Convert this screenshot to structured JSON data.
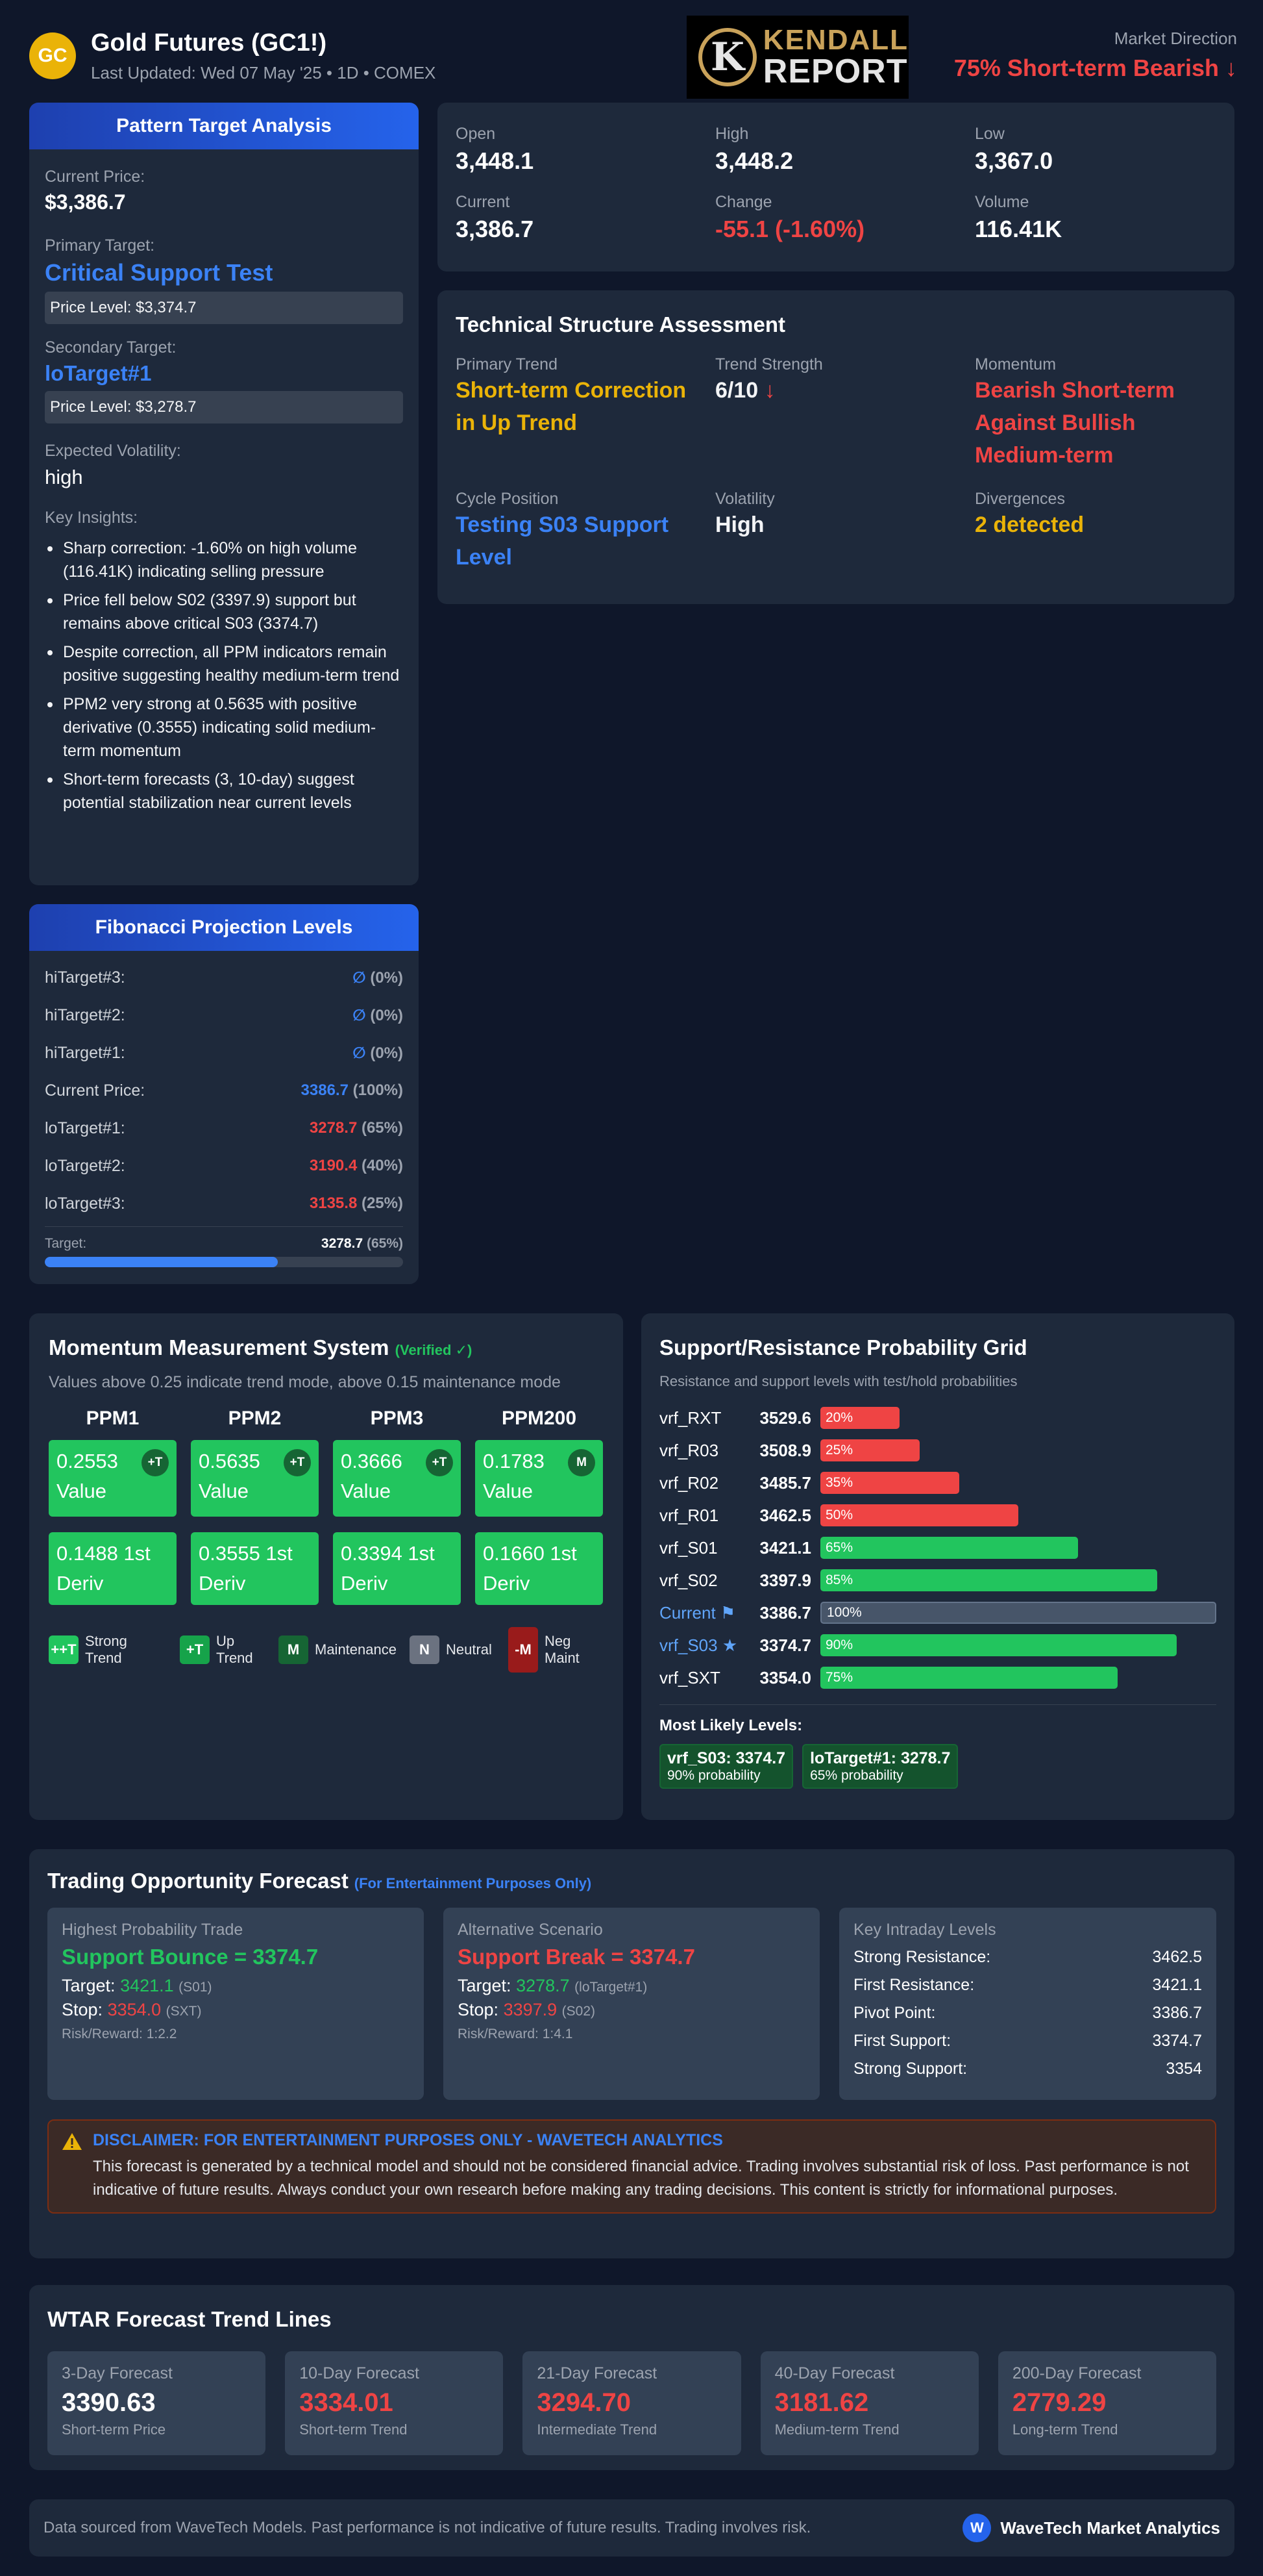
{
  "header": {
    "logo_text": "GC",
    "title": "Gold Futures (GC1!)",
    "subtitle": "Last Updated: Wed 07 May '25 • 1D • COMEX",
    "brand_line1": "KENDALL",
    "brand_line2": "REPORT",
    "market_direction_label": "Market Direction",
    "market_direction_value": "75% Short-term Bearish ↓"
  },
  "pattern": {
    "title": "Pattern Target Analysis",
    "current_price_label": "Current Price:",
    "current_price": "$3,386.7",
    "primary_target_label": "Primary Target:",
    "primary_target": "Critical Support Test",
    "primary_level": "Price Level: $3,374.7",
    "secondary_target_label": "Secondary Target:",
    "secondary_target": "loTarget#1",
    "secondary_level": "Price Level: $3,278.7",
    "volatility_label": "Expected Volatility:",
    "volatility": "high",
    "insights_label": "Key Insights:",
    "insights": [
      "Sharp correction: -1.60% on high volume (116.41K) indicating selling pressure",
      "Price fell below S02 (3397.9) support but remains above critical S03 (3374.7)",
      "Despite correction, all PPM indicators remain positive suggesting healthy medium-term trend",
      "PPM2 very strong at 0.5635 with positive derivative (0.3555) indicating solid medium-term momentum",
      "Short-term forecasts (3, 10-day) suggest potential stabilization near current levels"
    ]
  },
  "fibonacci": {
    "title": "Fibonacci Projection Levels",
    "rows": [
      {
        "label": "hiTarget#3:",
        "value": "∅",
        "pct": "(0%)",
        "color": "#3b82f6"
      },
      {
        "label": "hiTarget#2:",
        "value": "∅",
        "pct": "(0%)",
        "color": "#3b82f6"
      },
      {
        "label": "hiTarget#1:",
        "value": "∅",
        "pct": "(0%)",
        "color": "#3b82f6"
      },
      {
        "label": "Current Price:",
        "value": "3386.7",
        "pct": "(100%)",
        "color": "#3b82f6"
      },
      {
        "label": "loTarget#1:",
        "value": "3278.7",
        "pct": "(65%)",
        "color": "#ef4444"
      },
      {
        "label": "loTarget#2:",
        "value": "3190.4",
        "pct": "(40%)",
        "color": "#ef4444"
      },
      {
        "label": "loTarget#3:",
        "value": "3135.8",
        "pct": "(25%)",
        "color": "#ef4444"
      }
    ],
    "target_label": "Target:",
    "target_value": "3278.7",
    "target_pct": "(65%)",
    "target_progress": 0.65
  },
  "stats": [
    {
      "label": "Open",
      "value": "3,448.1",
      "color": "#ffffff"
    },
    {
      "label": "High",
      "value": "3,448.2",
      "color": "#ffffff"
    },
    {
      "label": "Low",
      "value": "3,367.0",
      "color": "#ffffff"
    },
    {
      "label": "Current",
      "value": "3,386.7",
      "color": "#ffffff"
    },
    {
      "label": "Change",
      "value": "-55.1 (-1.60%)",
      "color": "#ef4444"
    },
    {
      "label": "Volume",
      "value": "116.41K",
      "color": "#ffffff"
    }
  ],
  "tsa": {
    "title": "Technical Structure Assessment",
    "primary_trend_label": "Primary Trend",
    "primary_trend": "Short-term Correction in Up Trend",
    "strength_label": "Trend Strength",
    "strength": "6/10",
    "strength_arrow": "↓",
    "momentum_label": "Momentum",
    "momentum": "Bearish Short-term Against Bullish Medium-term",
    "cycle_label": "Cycle Position",
    "cycle": "Testing S03 Support Level",
    "volatility_label": "Volatility",
    "volatility": "High",
    "divergences_label": "Divergences",
    "divergences": "2 detected"
  },
  "momentum": {
    "title": "Momentum Measurement System",
    "verified": "(Verified ✓)",
    "subtitle": "Values above 0.25 indicate trend mode, above 0.15 maintenance mode",
    "columns": [
      {
        "name": "PPM1",
        "value": "0.2553 Value",
        "badge": "+T",
        "deriv": "0.1488 1st Deriv"
      },
      {
        "name": "PPM2",
        "value": "0.5635 Value",
        "badge": "+T",
        "deriv": "0.3555 1st Deriv"
      },
      {
        "name": "PPM3",
        "value": "0.3666 Value",
        "badge": "+T",
        "deriv": "0.3394 1st Deriv"
      },
      {
        "name": "PPM200",
        "value": "0.1783 Value",
        "badge": "M",
        "deriv": "0.1660 1st Deriv"
      }
    ],
    "legend": [
      {
        "swatch": "++T",
        "label": "Strong Trend",
        "color": "#22c55e"
      },
      {
        "swatch": "+T",
        "label": "Up Trend",
        "color": "#16a34a"
      },
      {
        "swatch": "M",
        "label": "Maintenance",
        "color": "#166534"
      },
      {
        "swatch": "N",
        "label": "Neutral",
        "color": "#6b7280"
      },
      {
        "swatch": "-M",
        "label": "Neg Maint",
        "color": "#991b1b"
      }
    ]
  },
  "sr": {
    "title": "Support/Resistance Probability Grid",
    "subtitle": "Resistance and support levels with test/hold probabilities",
    "rows": [
      {
        "name": "vrf_RXT",
        "value": "3529.6",
        "pct": "20%",
        "frac": 0.2,
        "color": "#ef4444"
      },
      {
        "name": "vrf_R03",
        "value": "3508.9",
        "pct": "25%",
        "frac": 0.25,
        "color": "#ef4444"
      },
      {
        "name": "vrf_R02",
        "value": "3485.7",
        "pct": "35%",
        "frac": 0.35,
        "color": "#ef4444"
      },
      {
        "name": "vrf_R01",
        "value": "3462.5",
        "pct": "50%",
        "frac": 0.5,
        "color": "#ef4444"
      },
      {
        "name": "vrf_S01",
        "value": "3421.1",
        "pct": "65%",
        "frac": 0.65,
        "color": "#22c55e"
      },
      {
        "name": "vrf_S02",
        "value": "3397.9",
        "pct": "85%",
        "frac": 0.85,
        "color": "#22c55e"
      },
      {
        "name": "Current ⚑",
        "value": "3386.7",
        "pct": "100%",
        "frac": 1.0,
        "color": "#475569"
      },
      {
        "name": "vrf_S03 ★",
        "value": "3374.7",
        "pct": "90%",
        "frac": 0.9,
        "color": "#22c55e"
      },
      {
        "name": "vrf_SXT",
        "value": "3354.0",
        "pct": "75%",
        "frac": 0.75,
        "color": "#22c55e"
      }
    ],
    "most_likely_label": "Most Likely Levels:",
    "likely": [
      {
        "title": "vrf_S03: 3374.7",
        "sub": "90% probability"
      },
      {
        "title": "loTarget#1: 3278.7",
        "sub": "65% probability"
      }
    ]
  },
  "trading": {
    "title": "Trading Opportunity Forecast",
    "note": "(For Entertainment Purposes Only)",
    "best": {
      "label": "Highest Probability Trade",
      "headline": "Support Bounce = 3374.7",
      "target_label": "Target:",
      "target_value": "3421.1",
      "target_tag": "(S01)",
      "stop_label": "Stop:",
      "stop_value": "3354.0",
      "stop_tag": "(SXT)",
      "rr": "Risk/Reward: 1:2.2"
    },
    "alt": {
      "label": "Alternative Scenario",
      "headline": "Support Break = 3374.7",
      "target_label": "Target:",
      "target_value": "3278.7",
      "target_tag": "(loTarget#1)",
      "stop_label": "Stop:",
      "stop_value": "3397.9",
      "stop_tag": "(S02)",
      "rr": "Risk/Reward: 1:4.1"
    },
    "levels_label": "Key Intraday Levels",
    "levels": [
      {
        "label": "Strong Resistance:",
        "value": "3462.5"
      },
      {
        "label": "First Resistance:",
        "value": "3421.1"
      },
      {
        "label": "Pivot Point:",
        "value": "3386.7"
      },
      {
        "label": "First Support:",
        "value": "3374.7"
      },
      {
        "label": "Strong Support:",
        "value": "3354"
      }
    ],
    "disclaimer_title": "DISCLAIMER: FOR ENTERTAINMENT PURPOSES ONLY - WAVETECH ANALYTICS",
    "disclaimer_body": "This forecast is generated by a technical model and should not be considered financial advice. Trading involves substantial risk of loss. Past performance is not indicative of future results. Always conduct your own research before making any trading decisions. This content is strictly for informational purposes."
  },
  "wtar": {
    "title": "WTAR Forecast Trend Lines",
    "cards": [
      {
        "label": "3-Day Forecast",
        "value": "3390.63",
        "sub": "Short-term Price",
        "color": "#ffffff"
      },
      {
        "label": "10-Day Forecast",
        "value": "3334.01",
        "sub": "Short-term Trend",
        "color": "#ef4444"
      },
      {
        "label": "21-Day Forecast",
        "value": "3294.70",
        "sub": "Intermediate Trend",
        "color": "#ef4444"
      },
      {
        "label": "40-Day Forecast",
        "value": "3181.62",
        "sub": "Medium-term Trend",
        "color": "#ef4444"
      },
      {
        "label": "200-Day Forecast",
        "value": "2779.29",
        "sub": "Long-term Trend",
        "color": "#ef4444"
      }
    ]
  },
  "footer": {
    "text": "Data sourced from WaveTech Models. Past performance is not indicative of future results. Trading involves risk.",
    "brand_icon": "W",
    "brand": "WaveTech Market Analytics"
  }
}
